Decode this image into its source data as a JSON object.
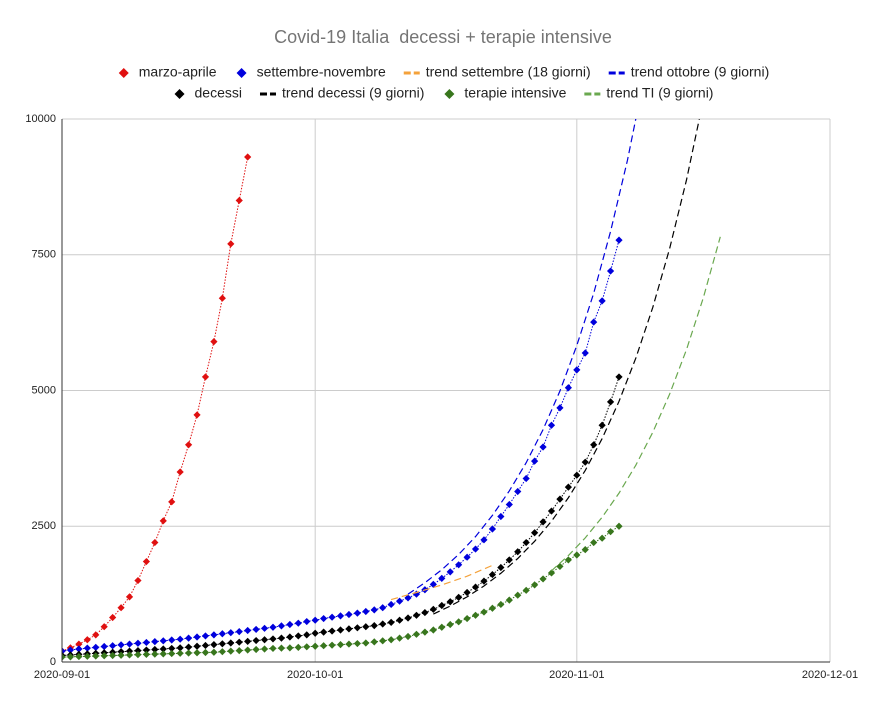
{
  "chart_data": {
    "type": "line",
    "title": "Covid-19 Italia  decessi + terapie intensive",
    "xlim": [
      "2020-09-01",
      "2020-12-01"
    ],
    "xticks": [
      "2020-09-01",
      "2020-10-01",
      "2020-11-01",
      "2020-12-01"
    ],
    "ylim": [
      0,
      10000
    ],
    "yticks": [
      0,
      2500,
      5000,
      7500,
      10000
    ],
    "grid": true,
    "legend": "top",
    "x": [
      "2020-09-01",
      "2020-09-02",
      "2020-09-03",
      "2020-09-04",
      "2020-09-05",
      "2020-09-06",
      "2020-09-07",
      "2020-09-08",
      "2020-09-09",
      "2020-09-10",
      "2020-09-11",
      "2020-09-12",
      "2020-09-13",
      "2020-09-14",
      "2020-09-15",
      "2020-09-16",
      "2020-09-17",
      "2020-09-18",
      "2020-09-19",
      "2020-09-20",
      "2020-09-21",
      "2020-09-22",
      "2020-09-23",
      "2020-09-24",
      "2020-09-25",
      "2020-09-26",
      "2020-09-27",
      "2020-09-28",
      "2020-09-29",
      "2020-09-30",
      "2020-10-01",
      "2020-10-02",
      "2020-10-03",
      "2020-10-04",
      "2020-10-05",
      "2020-10-06",
      "2020-10-07",
      "2020-10-08",
      "2020-10-09",
      "2020-10-10",
      "2020-10-11",
      "2020-10-12",
      "2020-10-13",
      "2020-10-14",
      "2020-10-15",
      "2020-10-16",
      "2020-10-17",
      "2020-10-18",
      "2020-10-19",
      "2020-10-20",
      "2020-10-21",
      "2020-10-22",
      "2020-10-23",
      "2020-10-24",
      "2020-10-25",
      "2020-10-26",
      "2020-10-27",
      "2020-10-28",
      "2020-10-29",
      "2020-10-30",
      "2020-10-31",
      "2020-11-01",
      "2020-11-02",
      "2020-11-03",
      "2020-11-04",
      "2020-11-05",
      "2020-11-06"
    ],
    "series": [
      {
        "name": "marzo-aprile",
        "color": "#e01010",
        "marker": "diamond",
        "line": "dotted",
        "x": [
          "2020-09-01",
          "2020-09-02",
          "2020-09-03",
          "2020-09-04",
          "2020-09-05",
          "2020-09-06",
          "2020-09-07",
          "2020-09-08",
          "2020-09-09",
          "2020-09-10",
          "2020-09-11",
          "2020-09-12",
          "2020-09-13",
          "2020-09-14",
          "2020-09-15",
          "2020-09-16",
          "2020-09-17",
          "2020-09-18",
          "2020-09-19",
          "2020-09-20",
          "2020-09-21",
          "2020-09-22",
          "2020-09-23"
        ],
        "values": [
          200,
          260,
          330,
          410,
          500,
          650,
          820,
          1000,
          1200,
          1500,
          1850,
          2200,
          2600,
          2950,
          3500,
          4000,
          4550,
          5250,
          5900,
          6700,
          7700,
          8500,
          9300
        ]
      },
      {
        "name": "settembre-novembre",
        "color": "#0000dd",
        "marker": "diamond",
        "line": "dotted",
        "values": [
          200,
          220,
          240,
          255,
          270,
          285,
          300,
          315,
          330,
          345,
          360,
          375,
          390,
          405,
          420,
          440,
          460,
          480,
          500,
          520,
          540,
          560,
          580,
          600,
          620,
          640,
          665,
          690,
          715,
          745,
          770,
          800,
          825,
          850,
          875,
          900,
          930,
          960,
          1000,
          1060,
          1120,
          1180,
          1250,
          1330,
          1430,
          1540,
          1660,
          1790,
          1930,
          2080,
          2250,
          2450,
          2680,
          2900,
          3140,
          3380,
          3700,
          3960,
          4360,
          4680,
          5050,
          5380,
          5690,
          6260,
          6650,
          7200,
          7770
        ]
      },
      {
        "name": "trend settembre (18 giorni)",
        "color": "#f4a23b",
        "line": "dashed",
        "x": [
          "2020-10-10",
          "2020-10-13",
          "2020-10-16",
          "2020-10-19",
          "2020-10-22"
        ],
        "values": [
          1150,
          1280,
          1420,
          1580,
          1780
        ]
      },
      {
        "name": "trend ottobre (9 giorni)",
        "color": "#0000dd",
        "line": "dashed",
        "x": [
          "2020-10-12",
          "2020-10-14",
          "2020-10-16",
          "2020-10-18",
          "2020-10-20",
          "2020-10-22",
          "2020-10-24",
          "2020-10-26",
          "2020-10-28",
          "2020-10-30",
          "2020-11-01",
          "2020-11-03",
          "2020-11-05",
          "2020-11-07",
          "2020-11-09"
        ],
        "values": [
          1250,
          1460,
          1700,
          1980,
          2310,
          2700,
          3150,
          3670,
          4280,
          4990,
          5830,
          6790,
          7930,
          9240,
          10780
        ]
      },
      {
        "name": "decessi",
        "color": "#000000",
        "marker": "diamond",
        "line": "dotted",
        "values": [
          120,
          130,
          140,
          150,
          160,
          170,
          180,
          190,
          200,
          210,
          220,
          230,
          240,
          250,
          260,
          275,
          290,
          305,
          320,
          335,
          350,
          365,
          380,
          395,
          410,
          425,
          440,
          460,
          480,
          500,
          530,
          550,
          570,
          590,
          610,
          630,
          650,
          670,
          700,
          730,
          770,
          810,
          860,
          910,
          970,
          1040,
          1110,
          1190,
          1280,
          1380,
          1490,
          1610,
          1740,
          1880,
          2030,
          2200,
          2380,
          2580,
          2780,
          3000,
          3220,
          3440,
          3680,
          4000,
          4360,
          4790,
          5250
        ]
      },
      {
        "name": "trend decessi (9 giorni)",
        "color": "#000000",
        "line": "dashed",
        "x": [
          "2020-10-15",
          "2020-10-17",
          "2020-10-19",
          "2020-10-21",
          "2020-10-23",
          "2020-10-25",
          "2020-10-27",
          "2020-10-29",
          "2020-10-31",
          "2020-11-02",
          "2020-11-04",
          "2020-11-06",
          "2020-11-08",
          "2020-11-10",
          "2020-11-12",
          "2020-11-14",
          "2020-11-16"
        ],
        "values": [
          883,
          1030,
          1200,
          1400,
          1634,
          1906,
          2223,
          2593,
          3025,
          3528,
          4115,
          4800,
          5600,
          6530,
          7615,
          8880,
          10360
        ]
      },
      {
        "name": "terapie intensive",
        "color": "#38761d",
        "marker": "diamond",
        "line": "dotted",
        "values": [
          90,
          95,
          100,
          105,
          110,
          115,
          120,
          125,
          130,
          135,
          140,
          145,
          150,
          155,
          160,
          165,
          170,
          175,
          180,
          190,
          200,
          210,
          220,
          230,
          240,
          250,
          255,
          260,
          270,
          280,
          290,
          300,
          310,
          320,
          330,
          340,
          350,
          370,
          390,
          410,
          440,
          470,
          510,
          550,
          590,
          640,
          690,
          740,
          800,
          860,
          920,
          990,
          1060,
          1140,
          1230,
          1320,
          1420,
          1530,
          1640,
          1760,
          1880,
          1970,
          2070,
          2200,
          2280,
          2400,
          2500
        ]
      },
      {
        "name": "trend TI (9 giorni)",
        "color": "#6aa84f",
        "line": "dashed",
        "x": [
          "2020-10-29",
          "2020-10-31",
          "2020-11-02",
          "2020-11-04",
          "2020-11-06",
          "2020-11-08",
          "2020-11-10",
          "2020-11-12",
          "2020-11-14",
          "2020-11-16",
          "2020-11-18"
        ],
        "values": [
          1680,
          1960,
          2286,
          2666,
          3110,
          3627,
          4230,
          4934,
          5755,
          6713,
          7830
        ]
      }
    ]
  }
}
